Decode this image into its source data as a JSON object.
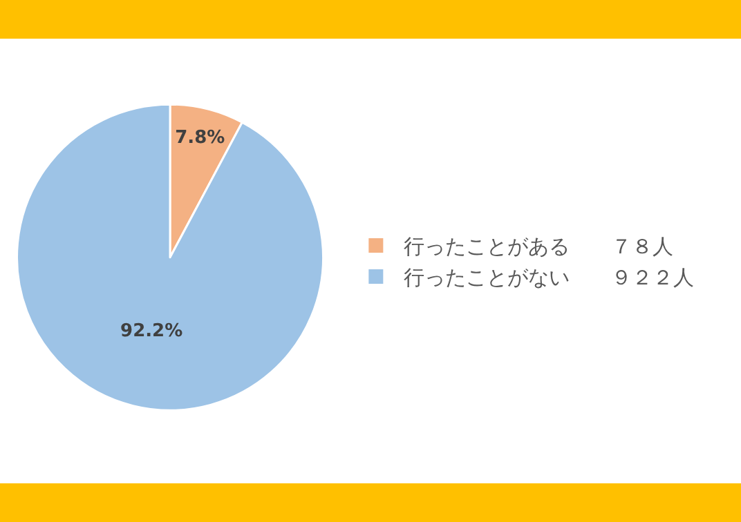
{
  "chart_data": {
    "type": "pie",
    "categories": [
      "行ったことがある　　７８人",
      "行ったことがない　　９２２人"
    ],
    "values": [
      7.8,
      92.2
    ],
    "colors": [
      "#f4b183",
      "#9dc3e6"
    ],
    "value_labels": [
      "7.8%",
      "92.2%"
    ],
    "legend": "right"
  }
}
